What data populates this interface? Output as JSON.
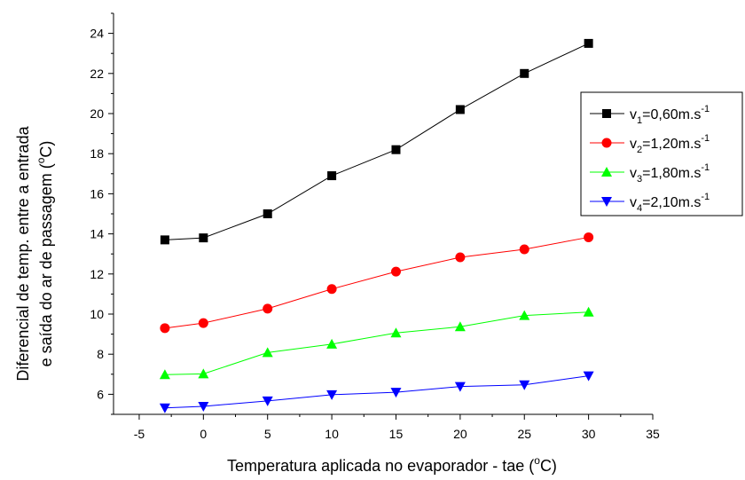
{
  "chart_data": {
    "type": "line",
    "xlabel": {
      "main": "Temperatura aplicada no evaporador - tae (",
      "sup": "o",
      "tail": "C)"
    },
    "ylabel": {
      "line1": "Diferencial de temp. entre a entrada",
      "line2_main": "e saída do ar de passagem (",
      "line2_sup": "o",
      "line2_tail": "C)"
    },
    "xlim": [
      -7,
      35
    ],
    "ylim": [
      5,
      25
    ],
    "xticks": [
      -5,
      0,
      5,
      10,
      15,
      20,
      25,
      30,
      35
    ],
    "yticks": [
      6,
      8,
      10,
      12,
      14,
      16,
      18,
      20,
      22,
      24
    ],
    "grid": false,
    "legend_position": "right",
    "x": [
      -3,
      0,
      5,
      10,
      15,
      20,
      25,
      30
    ],
    "series": [
      {
        "name": "v1=0,60m.s-1",
        "label": {
          "pre": "v",
          "sub": "1",
          "mid": "=0,60m.s",
          "sup": "-1"
        },
        "color": "#000000",
        "marker": "square",
        "values": [
          13.7,
          13.8,
          15.0,
          16.9,
          18.2,
          20.2,
          22.0,
          23.5
        ]
      },
      {
        "name": "v2=1,20m.s-1",
        "label": {
          "pre": "v",
          "sub": "2",
          "mid": "=1,20m.s",
          "sup": "-1"
        },
        "color": "#ff0000",
        "marker": "circle",
        "values": [
          9.3,
          9.55,
          10.27,
          11.25,
          12.12,
          12.83,
          13.23,
          13.83
        ]
      },
      {
        "name": "v3=1,80m.s-1",
        "label": {
          "pre": "v",
          "sub": "3",
          "mid": "=1,80m.s",
          "sup": "-1"
        },
        "color": "#00ff00",
        "marker": "triangle-up",
        "values": [
          6.98,
          7.02,
          8.08,
          8.5,
          9.06,
          9.37,
          9.93,
          10.1
        ]
      },
      {
        "name": "v4=2,10m.s-1",
        "label": {
          "pre": "v",
          "sub": "4",
          "mid": "=2,10m.s",
          "sup": "-1"
        },
        "color": "#0000ff",
        "marker": "triangle-down",
        "values": [
          5.32,
          5.4,
          5.67,
          5.98,
          6.1,
          6.39,
          6.47,
          6.92
        ]
      }
    ]
  }
}
